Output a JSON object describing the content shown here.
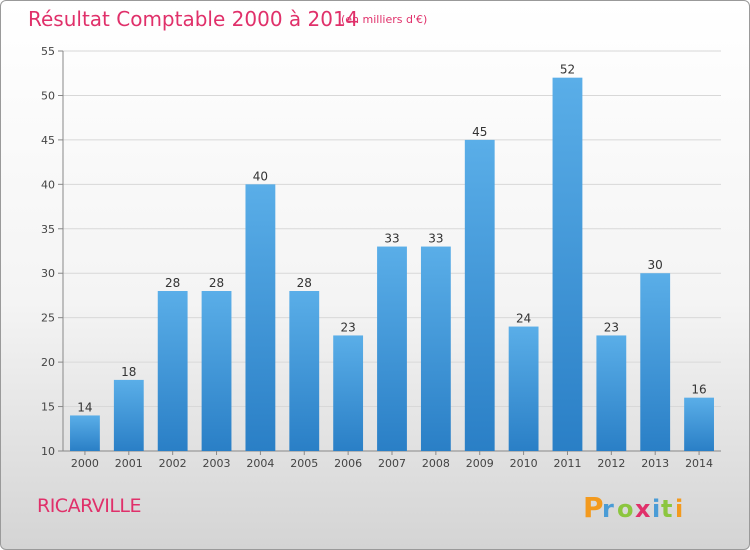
{
  "header": {
    "title": "Résultat Comptable 2000 à 2014",
    "unit": "(en milliers d'€)"
  },
  "footer": {
    "city": "RICARVILLE",
    "brand": "Proxiti"
  },
  "colors": {
    "accent": "#e0306a",
    "bar_top": "#5aaee8",
    "bar_bottom": "#2a7fc6",
    "grid": "#d8d8d8"
  },
  "chart_data": {
    "type": "bar",
    "categories": [
      "2000",
      "2001",
      "2002",
      "2003",
      "2004",
      "2005",
      "2006",
      "2007",
      "2008",
      "2009",
      "2010",
      "2011",
      "2012",
      "2013",
      "2014"
    ],
    "values": [
      14,
      18,
      28,
      28,
      40,
      28,
      23,
      33,
      33,
      45,
      24,
      52,
      23,
      30,
      16
    ],
    "title": "Résultat Comptable 2000 à 2014",
    "subtitle": "(en milliers d'€)",
    "ylim": [
      10,
      55
    ],
    "yticks": [
      10,
      15,
      20,
      25,
      30,
      35,
      40,
      45,
      50,
      55
    ],
    "grid": true,
    "legend": "none"
  }
}
